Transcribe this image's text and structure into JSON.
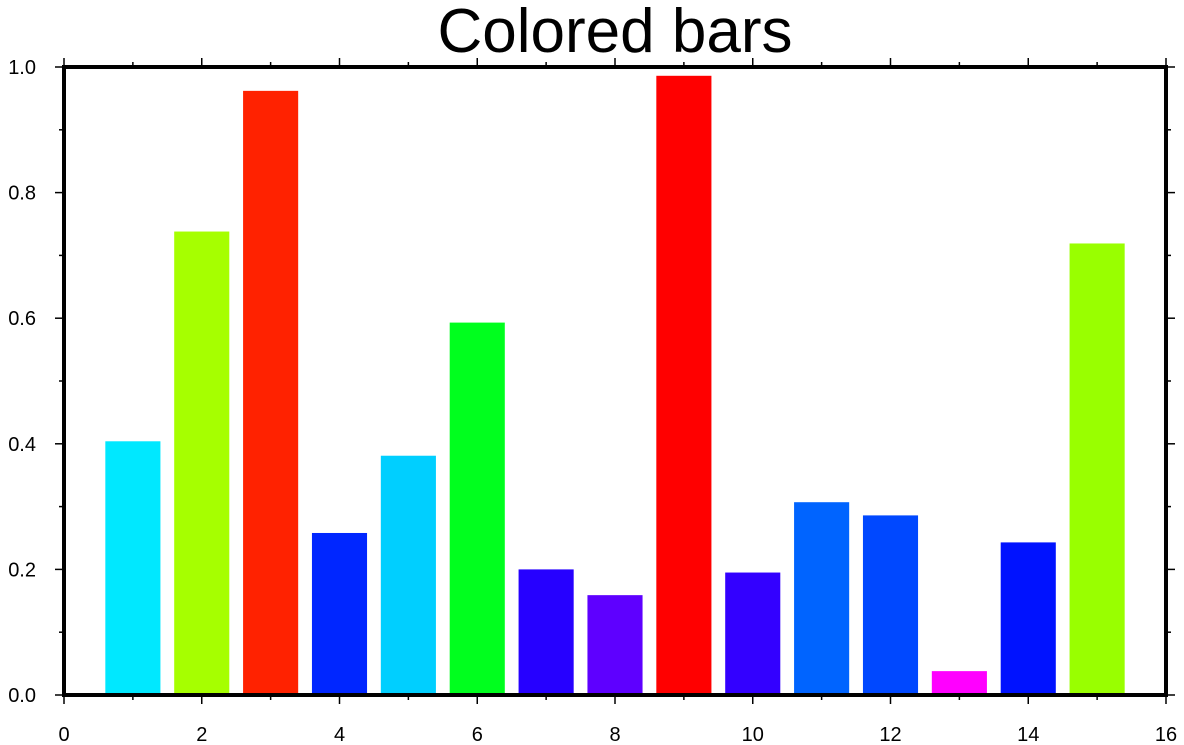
{
  "chart_data": {
    "type": "bar",
    "title": "Colored bars",
    "xlabel": "",
    "ylabel": "",
    "xlim": [
      0,
      16
    ],
    "ylim": [
      0,
      1.0
    ],
    "xticks": [
      "0",
      "2",
      "4",
      "6",
      "8",
      "10",
      "12",
      "14",
      "16"
    ],
    "yticks": [
      "0.0",
      "0.2",
      "0.4",
      "0.6",
      "0.8",
      "1.0"
    ],
    "bar_width": 0.8,
    "grid": false,
    "x": [
      1,
      2,
      3,
      4,
      5,
      6,
      7,
      8,
      9,
      10,
      11,
      12,
      13,
      14,
      15
    ],
    "values": [
      0.404,
      0.738,
      0.962,
      0.258,
      0.381,
      0.593,
      0.2,
      0.159,
      0.986,
      0.195,
      0.307,
      0.286,
      0.038,
      0.243,
      0.719
    ],
    "colors": [
      "#00e8ff",
      "#a6ff00",
      "#ff2200",
      "#0026ff",
      "#00cfff",
      "#00ff1e",
      "#2600ff",
      "#5e00ff",
      "#ff0000",
      "#3300ff",
      "#0064ff",
      "#0048ff",
      "#ff00ff",
      "#0012ff",
      "#99ff00"
    ]
  }
}
